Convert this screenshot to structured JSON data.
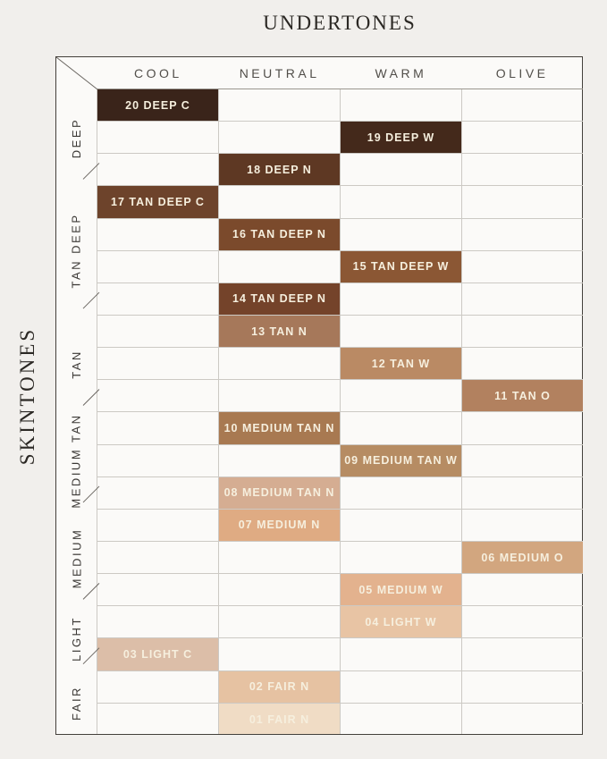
{
  "page": {
    "title": "UNDERTONES",
    "side_label": "SKINTONES"
  },
  "chart_data": {
    "type": "heatmap",
    "title": "UNDERTONES",
    "column_axis_label": "UNDERTONES",
    "row_axis_label": "SKINTONES",
    "columns": [
      "COOL",
      "NEUTRAL",
      "WARM",
      "OLIVE"
    ],
    "row_groups": [
      {
        "label": "DEEP",
        "rows": 3
      },
      {
        "label": "TAN DEEP",
        "rows": 4
      },
      {
        "label": "TAN",
        "rows": 3
      },
      {
        "label": "MEDIUM TAN",
        "rows": 3
      },
      {
        "label": "MEDIUM",
        "rows": 3
      },
      {
        "label": "LIGHT",
        "rows": 2
      },
      {
        "label": "FAIR",
        "rows": 2
      }
    ],
    "rows": [
      {
        "shade": "20 DEEP C",
        "skintone": "DEEP",
        "undertone": "COOL",
        "swatch": "#3a241a"
      },
      {
        "shade": "19 DEEP W",
        "skintone": "DEEP",
        "undertone": "WARM",
        "swatch": "#44291b"
      },
      {
        "shade": "18 DEEP N",
        "skintone": "DEEP",
        "undertone": "NEUTRAL",
        "swatch": "#5e3823"
      },
      {
        "shade": "17 TAN DEEP C",
        "skintone": "TAN DEEP",
        "undertone": "COOL",
        "swatch": "#6d432b"
      },
      {
        "shade": "16 TAN DEEP N",
        "skintone": "TAN DEEP",
        "undertone": "NEUTRAL",
        "swatch": "#7b4a2c"
      },
      {
        "shade": "15 TAN DEEP W",
        "skintone": "TAN DEEP",
        "undertone": "WARM",
        "swatch": "#8b5734"
      },
      {
        "shade": "14 TAN DEEP N",
        "skintone": "TAN DEEP",
        "undertone": "NEUTRAL",
        "swatch": "#74432a"
      },
      {
        "shade": "13 TAN N",
        "skintone": "TAN",
        "undertone": "NEUTRAL",
        "swatch": "#a6785a"
      },
      {
        "shade": "12 TAN W",
        "skintone": "TAN",
        "undertone": "WARM",
        "swatch": "#ba8a64"
      },
      {
        "shade": "11 TAN O",
        "skintone": "TAN",
        "undertone": "OLIVE",
        "swatch": "#b2815f"
      },
      {
        "shade": "10 MEDIUM TAN N",
        "skintone": "MEDIUM TAN",
        "undertone": "NEUTRAL",
        "swatch": "#a87951"
      },
      {
        "shade": "09 MEDIUM TAN W",
        "skintone": "MEDIUM TAN",
        "undertone": "WARM",
        "swatch": "#b68c63"
      },
      {
        "shade": "08 MEDIUM TAN N",
        "skintone": "MEDIUM TAN",
        "undertone": "NEUTRAL",
        "swatch": "#d5ad92"
      },
      {
        "shade": "07 MEDIUM N",
        "skintone": "MEDIUM",
        "undertone": "NEUTRAL",
        "swatch": "#dfab83"
      },
      {
        "shade": "06 MEDIUM O",
        "skintone": "MEDIUM",
        "undertone": "OLIVE",
        "swatch": "#d2a67f"
      },
      {
        "shade": "05 MEDIUM W",
        "skintone": "MEDIUM",
        "undertone": "WARM",
        "swatch": "#e3b28e"
      },
      {
        "shade": "04 LIGHT W",
        "skintone": "LIGHT",
        "undertone": "WARM",
        "swatch": "#e8c4a4"
      },
      {
        "shade": "03 LIGHT C",
        "skintone": "LIGHT",
        "undertone": "COOL",
        "swatch": "#dcbea8"
      },
      {
        "shade": "02 FAIR N",
        "skintone": "FAIR",
        "undertone": "NEUTRAL",
        "swatch": "#e6c2a2"
      },
      {
        "shade": "01 FAIR N",
        "skintone": "FAIR",
        "undertone": "NEUTRAL",
        "swatch": "#f0dcc5"
      }
    ],
    "grid": true,
    "legend_position": "none"
  },
  "colors": {
    "page_bg": "#f1efec",
    "cell_bg": "#fbfaf8",
    "grid_line": "#ccc9c4",
    "outer_border": "#44403b",
    "header_line": "#9a968f",
    "header_text": "#514e49",
    "group_text": "#3b3835",
    "title_text": "#2b2824",
    "shade_text": "#f6efde",
    "separator_line": "#6b6762"
  }
}
